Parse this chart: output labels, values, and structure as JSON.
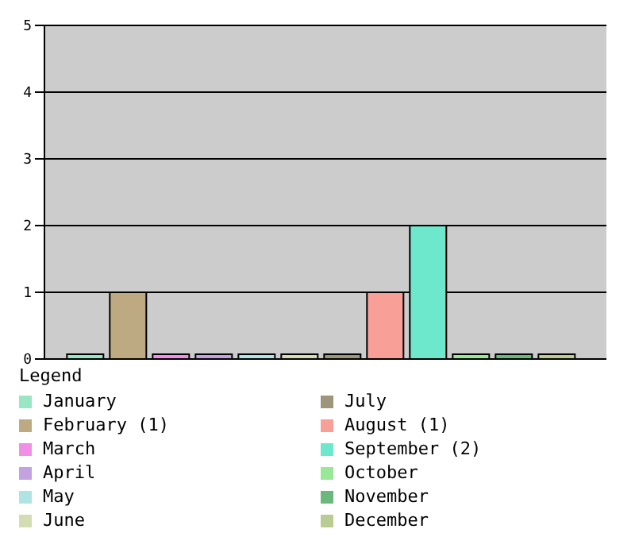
{
  "chart_data": {
    "type": "bar",
    "categories": [
      null
    ],
    "legend_title": "Legend",
    "ylim": [
      0,
      5
    ],
    "yticks": [
      0,
      1,
      2,
      3,
      4,
      5
    ],
    "grid": "y",
    "legend": "bottom",
    "series": [
      {
        "name": "January",
        "color": "#99e6c4",
        "values": [
          0
        ]
      },
      {
        "name": "February (1)",
        "color": "#bdaa82",
        "values": [
          1
        ]
      },
      {
        "name": "March",
        "color": "#f08ee8",
        "values": [
          0
        ]
      },
      {
        "name": "April",
        "color": "#c4a2e0",
        "values": [
          0
        ]
      },
      {
        "name": "May",
        "color": "#aee4e4",
        "values": [
          0
        ]
      },
      {
        "name": "June",
        "color": "#d4dcb4",
        "values": [
          0
        ]
      },
      {
        "name": "July",
        "color": "#9c967a",
        "values": [
          0
        ]
      },
      {
        "name": "August (1)",
        "color": "#f8a098",
        "values": [
          1
        ]
      },
      {
        "name": "September (2)",
        "color": "#6ee8cc",
        "values": [
          2
        ]
      },
      {
        "name": "October",
        "color": "#98e898",
        "values": [
          0
        ]
      },
      {
        "name": "November",
        "color": "#6ab87c",
        "values": [
          0
        ]
      },
      {
        "name": "December",
        "color": "#b8cc94",
        "values": [
          0
        ]
      }
    ]
  }
}
